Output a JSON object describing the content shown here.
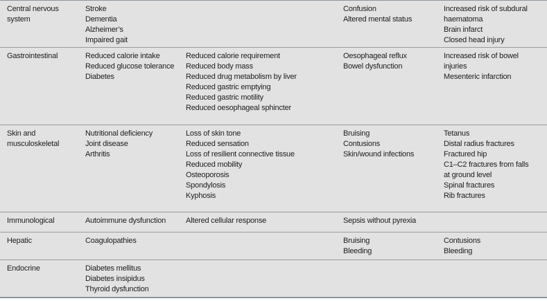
{
  "colors": {
    "background": "#e2e2e2",
    "row_divider": "#9b9b9b",
    "outer_border": "#8f9499",
    "text": "#1c1c1c"
  },
  "table": {
    "rows": [
      {
        "system": "Central nervous\nsystem",
        "cols": [
          [
            "Stroke",
            "Dementia",
            "Alzheimer’s",
            "Impaired gait"
          ],
          [],
          [
            "Confusion",
            "Altered mental status"
          ],
          [
            "Increased risk of subdural\nhaematoma",
            "Brain infarct",
            "Closed head injury"
          ]
        ]
      },
      {
        "system": "Gastrointestinal",
        "cols": [
          [
            "Reduced calorie intake",
            "Reduced glucose tolerance",
            "Diabetes"
          ],
          [
            "Reduced calorie requirement",
            "Reduced body mass",
            "Reduced drug metabolism by liver",
            "Reduced gastric emptying",
            "Reduced gastric motility",
            "Reduced oesophageal sphincter"
          ],
          [
            "Oesophageal reflux",
            "Bowel dysfunction"
          ],
          [
            "Increased risk of bowel\ninjuries",
            "Mesenteric infarction"
          ]
        ]
      },
      {
        "system": "Skin and\nmusculoskeletal",
        "cols": [
          [
            "Nutritional deficiency",
            "Joint disease",
            "Arthritis"
          ],
          [
            "Loss of skin tone",
            "Reduced sensation",
            "Loss of resilient connective tissue",
            "Reduced mobility",
            "Osteoporosis",
            "Spondylosis",
            "Kyphosis"
          ],
          [
            "Bruising",
            "Contusions",
            "Skin/wound infections"
          ],
          [
            "Tetanus",
            "Distal radius fractures",
            "Fractured hip",
            "C1–C2 fractures from falls\nat ground level",
            "Spinal fractures",
            "Rib fractures"
          ]
        ]
      },
      {
        "system": "Immunological",
        "cols": [
          [
            "Autoimmune dysfunction"
          ],
          [
            "Altered cellular response"
          ],
          [
            "Sepsis without pyrexia"
          ],
          []
        ]
      },
      {
        "system": "Hepatic",
        "cols": [
          [
            "Coagulopathies"
          ],
          [],
          [
            "Bruising",
            "Bleeding"
          ],
          [
            "Contusions",
            "Bleeding"
          ]
        ]
      },
      {
        "system": "Endocrine",
        "cols": [
          [
            "Diabetes mellitus",
            "Diabetes insipidus",
            "Thyroid dysfunction"
          ],
          [],
          [],
          []
        ]
      }
    ]
  }
}
